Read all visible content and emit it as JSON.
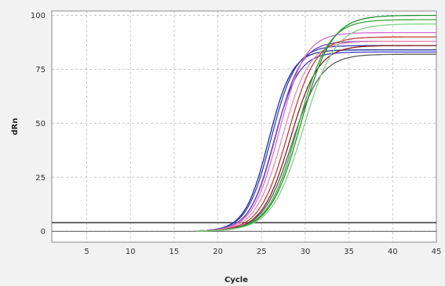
{
  "chart_data": {
    "type": "line",
    "title": "",
    "xlabel": "Cycle",
    "ylabel": "dRn",
    "xlim": [
      1,
      45
    ],
    "ylim": [
      -5,
      102
    ],
    "xticks": [
      5,
      10,
      15,
      20,
      25,
      30,
      35,
      40,
      45
    ],
    "yticks": [
      0,
      25,
      50,
      75,
      100
    ],
    "grid": true,
    "threshold": 4,
    "baseline": 0,
    "series": [
      {
        "color": "#1f2f8f",
        "plateau": 84,
        "midpoint": 25.8,
        "slope": 1.35
      },
      {
        "color": "#2d46b8",
        "plateau": 86,
        "midpoint": 26.1,
        "slope": 1.4
      },
      {
        "color": "#3a3ad0",
        "plateau": 83,
        "midpoint": 26.4,
        "slope": 1.4
      },
      {
        "color": "#7b3fb8",
        "plateau": 88,
        "midpoint": 26.6,
        "slope": 1.45
      },
      {
        "color": "#d66ad6",
        "plateau": 92,
        "midpoint": 27.0,
        "slope": 1.5
      },
      {
        "color": "#e58bb0",
        "plateau": 88,
        "midpoint": 27.4,
        "slope": 1.55
      },
      {
        "color": "#c03a3a",
        "plateau": 90,
        "midpoint": 28.0,
        "slope": 1.6
      },
      {
        "color": "#8a1c1c",
        "plateau": 86,
        "midpoint": 28.3,
        "slope": 1.6
      },
      {
        "color": "#5a5a5a",
        "plateau": 82,
        "midpoint": 28.5,
        "slope": 1.65
      },
      {
        "color": "#3aa63a",
        "plateau": 98,
        "midpoint": 29.2,
        "slope": 1.7
      },
      {
        "color": "#1e8f2f",
        "plateau": 100,
        "midpoint": 29.5,
        "slope": 1.75
      },
      {
        "color": "#7ed37e",
        "plateau": 96,
        "midpoint": 29.8,
        "slope": 1.8
      }
    ]
  }
}
